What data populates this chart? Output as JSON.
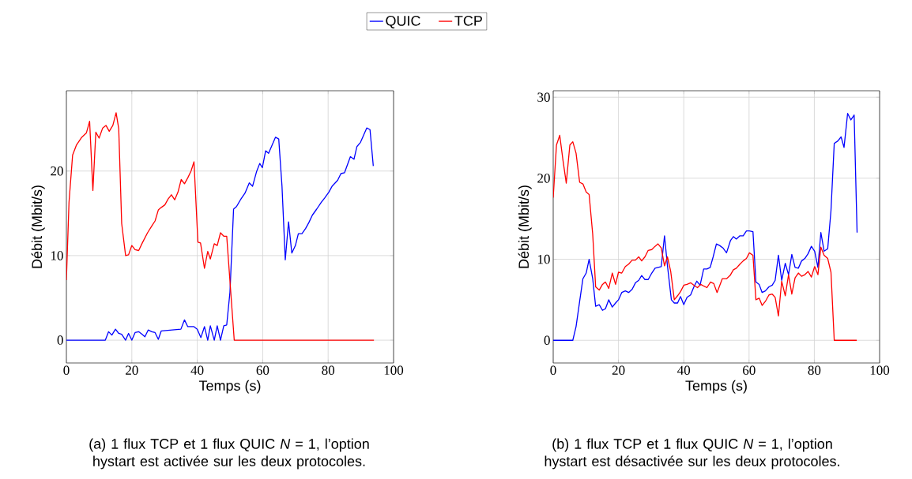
{
  "chart_data": [
    {
      "type": "line",
      "title": "(a) 1 flux TCP et 1 flux QUIC *N* = 1, l’option hystart est activée sur les deux protocoles.",
      "xlabel": "Temps (s)",
      "ylabel": "Débit (Mbit/s)",
      "xlim": [
        0,
        100
      ],
      "ylim": [
        -2.7,
        29.5
      ],
      "xticks": [
        0,
        20,
        40,
        60,
        80,
        100
      ],
      "yticks": [
        0,
        10,
        20
      ],
      "grid": true,
      "legend": "top",
      "series": [
        {
          "name": "QUIC",
          "color": "#0000ff",
          "x": [
            0,
            11.9,
            12.9,
            13.9,
            15.0,
            16.0,
            16.9,
            18.1,
            19.0,
            20.0,
            21.0,
            22.1,
            23.1,
            24.0,
            25.0,
            26.1,
            27.1,
            28.1,
            29.0,
            35.0,
            36.1,
            37.1,
            39.0,
            40.0,
            41.1,
            42.2,
            43.2,
            44.0,
            45.2,
            46.1,
            47.1,
            48.1,
            49.0,
            50.0,
            51.1,
            52.0,
            53.2,
            54.6,
            55.9,
            56.9,
            58.1,
            59.1,
            59.9,
            60.9,
            61.8,
            63.9,
            64.9,
            65.9,
            66.9,
            67.9,
            68.9,
            70.0,
            70.9,
            72.0,
            73.1,
            74.1,
            75.2,
            76.5,
            77.9,
            78.9,
            80.2,
            81.2,
            82.9,
            83.9,
            85.0,
            86.8,
            87.9,
            88.8,
            89.9,
            91.8,
            92.8,
            93.8
          ],
          "values": [
            0,
            0,
            1.0,
            0.6,
            1.3,
            0.8,
            0.7,
            0,
            0.8,
            0,
            0.9,
            1.0,
            0.7,
            0.4,
            1.2,
            1.0,
            0.9,
            0.1,
            1.1,
            1.3,
            2.4,
            1.6,
            1.6,
            1.3,
            0.3,
            1.6,
            0,
            1.7,
            0,
            1.7,
            0,
            1.7,
            1.8,
            5.7,
            15.5,
            15.8,
            16.6,
            17.4,
            18.6,
            18.2,
            19.9,
            20.9,
            20.4,
            22.4,
            22.1,
            24.0,
            23.8,
            18.2,
            9.5,
            14.0,
            10.3,
            11.2,
            12.6,
            12.6,
            13.2,
            13.9,
            14.8,
            15.5,
            16.3,
            16.8,
            17.5,
            18.2,
            18.9,
            19.7,
            19.8,
            21.7,
            21.4,
            22.9,
            23.4,
            25.1,
            24.9,
            20.6
          ]
        },
        {
          "name": "TCP",
          "color": "#ff0000",
          "x": [
            0,
            0.8,
            1.9,
            3.1,
            4.7,
            6.1,
            7.1,
            8.1,
            9.0,
            10.0,
            11.1,
            12.1,
            13.1,
            14.2,
            15.2,
            16.0,
            16.9,
            18.1,
            19.0,
            20.0,
            21.0,
            22.1,
            23.2,
            24.8,
            26.1,
            27.1,
            28.1,
            29.0,
            30.1,
            31.1,
            32.1,
            33.1,
            34.1,
            35.1,
            36.1,
            37.1,
            38.1,
            39.0,
            40.2,
            41.0,
            42.2,
            43.2,
            44.0,
            45.2,
            46.1,
            47.1,
            48.1,
            49.0,
            51.3,
            94
          ],
          "values": [
            7.1,
            16.3,
            21.9,
            23.1,
            24.0,
            24.5,
            25.9,
            17.7,
            24.6,
            23.9,
            25.1,
            25.4,
            24.7,
            25.4,
            26.9,
            25.0,
            13.8,
            10.0,
            10.1,
            11.2,
            10.7,
            10.6,
            11.5,
            12.7,
            13.5,
            14.1,
            15.4,
            15.7,
            16.0,
            16.7,
            17.2,
            16.6,
            17.5,
            19.0,
            18.5,
            19.2,
            20.0,
            21.1,
            11.6,
            11.5,
            8.5,
            10.5,
            9.6,
            11.4,
            11.2,
            12.7,
            12.3,
            12.3,
            0,
            0
          ]
        }
      ]
    },
    {
      "type": "line",
      "title": "(b) 1 flux TCP et 1 flux QUIC *N* = 1, l’option hystart est désactivée sur les deux protocoles.",
      "xlabel": "Temps (s)",
      "ylabel": "Débit (Mbit/s)",
      "xlim": [
        0,
        100
      ],
      "ylim": [
        -2.8,
        30.8
      ],
      "xticks": [
        0,
        20,
        40,
        60,
        80,
        100
      ],
      "yticks": [
        0,
        10,
        20,
        30
      ],
      "grid": true,
      "series": [
        {
          "color": "#0000ff",
          "x": [
            0,
            6.0,
            7.0,
            8.1,
            9.1,
            10.1,
            11.0,
            12.1,
            13.0,
            14.1,
            15.1,
            16.0,
            17.0,
            18.1,
            19.1,
            20.0,
            21.0,
            22.1,
            23.1,
            24.2,
            25.2,
            26.2,
            27.1,
            28.1,
            29.1,
            30.2,
            31.2,
            32.1,
            33.1,
            34.1,
            35.0,
            36.2,
            37.1,
            38.1,
            39.0,
            40.0,
            41.0,
            42.1,
            43.1,
            44.0,
            45.0,
            46.1,
            47.1,
            48.1,
            49.0,
            50.0,
            51.0,
            52.0,
            53.1,
            54.3,
            55.2,
            56.1,
            57.2,
            58.2,
            59.2,
            60.1,
            61.2,
            62.1,
            63.1,
            64.0,
            65.0,
            66.1,
            67.1,
            68.0,
            69.0,
            70.0,
            71.1,
            72.1,
            73.1,
            74.1,
            75.1,
            76.1,
            77.1,
            78.1,
            79.1,
            80.1,
            81.1,
            82.0,
            83.0,
            84.1,
            85.1,
            86.1,
            87.2,
            88.2,
            89.1,
            90.2,
            91.2,
            92.2,
            93.1
          ],
          "values": [
            0,
            0,
            1.7,
            4.8,
            7.6,
            8.3,
            10.0,
            7.6,
            4.2,
            4.4,
            3.7,
            3.9,
            5.0,
            4.1,
            4.6,
            5.0,
            5.9,
            6.1,
            5.9,
            6.3,
            7.1,
            7.4,
            8.0,
            7.5,
            7.5,
            8.3,
            8.9,
            9.0,
            9.1,
            12.9,
            9.2,
            5.0,
            4.6,
            4.6,
            5.4,
            4.4,
            5.3,
            5.6,
            6.6,
            7.3,
            6.8,
            8.8,
            8.8,
            9.0,
            10.3,
            11.9,
            11.7,
            11.4,
            10.8,
            12.3,
            12.8,
            12.5,
            12.9,
            12.9,
            13.5,
            13.5,
            13.4,
            7.2,
            6.9,
            5.9,
            6.1,
            6.6,
            6.8,
            7.4,
            10.5,
            7.4,
            9.5,
            8.1,
            10.6,
            9.0,
            8.9,
            9.8,
            10.1,
            10.7,
            11.6,
            11.0,
            9.0,
            13.3,
            11.0,
            11.3,
            16.0,
            24.3,
            24.6,
            25.1,
            23.8,
            28.0,
            27.2,
            27.8,
            13.3
          ]
        },
        {
          "color": "#ff0000",
          "x": [
            0,
            1.0,
            2.0,
            3.0,
            4.0,
            5.1,
            6.0,
            7.0,
            8.1,
            9.1,
            10.1,
            11.0,
            12.1,
            13.0,
            14.1,
            15.1,
            16.0,
            17.0,
            18.1,
            19.1,
            20.0,
            21.0,
            22.1,
            23.1,
            24.2,
            25.2,
            26.2,
            27.1,
            28.1,
            29.1,
            30.2,
            31.2,
            32.1,
            33.1,
            34.1,
            35.0,
            36.0,
            37.1,
            38.1,
            39.0,
            40.0,
            41.0,
            42.1,
            43.1,
            44.2,
            45.2,
            46.1,
            47.1,
            48.2,
            49.2,
            50.2,
            51.8,
            53.1,
            54.2,
            55.2,
            56.1,
            57.2,
            58.2,
            59.2,
            60.1,
            61.2,
            62.1,
            63.1,
            64.0,
            65.0,
            66.1,
            67.1,
            68.0,
            69.0,
            70.0,
            71.1,
            72.1,
            73.1,
            74.1,
            75.1,
            76.1,
            77.1,
            78.1,
            79.1,
            80.1,
            81.1,
            82.0,
            83.0,
            84.1,
            85.1,
            86.1,
            93.0
          ],
          "values": [
            17.6,
            24.1,
            25.3,
            22.2,
            19.4,
            24.1,
            24.5,
            23.1,
            19.5,
            19.3,
            18.3,
            18.0,
            13.1,
            6.6,
            6.2,
            6.9,
            7.2,
            6.4,
            8.3,
            6.9,
            8.4,
            8.3,
            9.1,
            9.4,
            9.9,
            9.9,
            10.3,
            9.8,
            10.3,
            11.1,
            11.2,
            11.6,
            11.9,
            11.4,
            9.2,
            10.3,
            8.5,
            5.0,
            5.5,
            6.0,
            6.8,
            6.9,
            7.1,
            6.8,
            6.5,
            6.9,
            6.7,
            6.5,
            7.2,
            7.0,
            5.9,
            7.6,
            7.6,
            8.0,
            8.7,
            8.9,
            9.4,
            9.8,
            10.1,
            10.8,
            10.5,
            5.0,
            5.2,
            4.3,
            4.8,
            5.6,
            5.7,
            5.3,
            3.0,
            7.3,
            5.5,
            8.1,
            5.7,
            7.7,
            8.3,
            7.9,
            8.1,
            8.5,
            7.8,
            9.1,
            8.1,
            11.5,
            10.5,
            10.1,
            8.4,
            0,
            0
          ]
        }
      ]
    }
  ]
}
